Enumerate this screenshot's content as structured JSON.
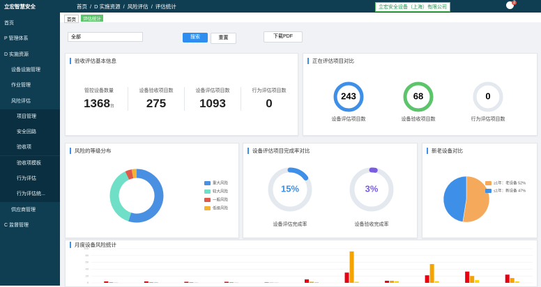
{
  "sidebar": {
    "brand": "立宏智慧安全",
    "menu": [
      {
        "label": "首页",
        "level": 0
      },
      {
        "label": "P 管理体系",
        "level": 0
      },
      {
        "label": "D 实施资源",
        "level": 0
      },
      {
        "label": "设备设施管理",
        "level": 1
      },
      {
        "label": "作业管理",
        "level": 1
      },
      {
        "label": "风险评估",
        "level": 1
      },
      {
        "label": "项目管理",
        "level": 2
      },
      {
        "label": "安全回路",
        "level": 2
      },
      {
        "label": "验收项",
        "level": 2
      },
      {
        "label": "验收项模板",
        "level": 2
      },
      {
        "label": "行为评估",
        "level": 2
      },
      {
        "label": "行为评估统...",
        "level": 2
      },
      {
        "label": "供应商管理",
        "level": 1
      },
      {
        "label": "C 监督管理",
        "level": 0
      }
    ]
  },
  "header": {
    "breadcrumb": [
      "首页",
      "D 实施资源",
      "风险评估",
      "评估统计"
    ],
    "company": "立宏安全设备（上海）有限公司",
    "badge": "2"
  },
  "tabs": [
    "首页",
    "评估统计"
  ],
  "filter": {
    "select": "全部",
    "search": "搜索",
    "reset": "重置",
    "download": "下载PDF"
  },
  "basic": {
    "title": "验收评估基本信息",
    "stats": [
      {
        "label": "管控设备数量",
        "value": "1368",
        "unit": "台"
      },
      {
        "label": "设备验收项目数",
        "value": "275"
      },
      {
        "label": "设备评估项目数",
        "value": "1093"
      },
      {
        "label": "行为评估项目数",
        "value": "0"
      }
    ]
  },
  "ongoing": {
    "title": "正在评估项目对比",
    "items": [
      {
        "value": "243",
        "label": "设备评估项目数",
        "color": "#3d8fe8"
      },
      {
        "value": "68",
        "label": "设备验收项目数",
        "color": "#5cc46a"
      },
      {
        "value": "0",
        "label": "行为评估项目数",
        "color": "#e4e8ef"
      }
    ]
  },
  "chart_data": [
    {
      "type": "donut",
      "title": "风险的等级分布",
      "categories": [
        "重大风险",
        "较大风险",
        "一般风险",
        "低级风险"
      ],
      "values": [
        55,
        38,
        4,
        3
      ],
      "colors": [
        "#4a90e2",
        "#6fe0c7",
        "#e0584a",
        "#f5b335"
      ]
    },
    {
      "type": "gauge",
      "title": "设备评估项目完成率对比",
      "categories": [
        "设备评估完成率",
        "设备验收完成率"
      ],
      "values": [
        15,
        3
      ],
      "value_labels": [
        "15%",
        "3%"
      ],
      "colors": [
        "#3d8fe8",
        "#7a5ce0"
      ]
    },
    {
      "type": "pie",
      "title": "新老设备对比",
      "categories": [
        "≥1年：老设备 52%",
        "≤1年：新设备 47%"
      ],
      "values": [
        52,
        47
      ],
      "colors": [
        "#f5a95a",
        "#3d8fe8"
      ]
    },
    {
      "type": "bar",
      "title": "月度设备风险统计",
      "categories": [
        null,
        null,
        null,
        null,
        null,
        null,
        null,
        null,
        null,
        null,
        null
      ],
      "series": [
        {
          "color": "#e60012",
          "values": [
            4,
            4,
            3,
            3,
            1,
            10,
            30,
            6,
            22,
            33,
            24
          ]
        },
        {
          "color": "#f5a300",
          "values": [
            2,
            2,
            2,
            2,
            1,
            3,
            92,
            6,
            55,
            20,
            14
          ]
        },
        {
          "color": "#ffd400",
          "values": [
            1,
            2,
            1,
            1,
            1,
            2,
            3,
            5,
            5,
            8,
            4
          ]
        }
      ],
      "ylim": [
        0,
        100
      ],
      "yticks": [
        0,
        20,
        40,
        60,
        80,
        100
      ],
      "grid": true
    }
  ]
}
